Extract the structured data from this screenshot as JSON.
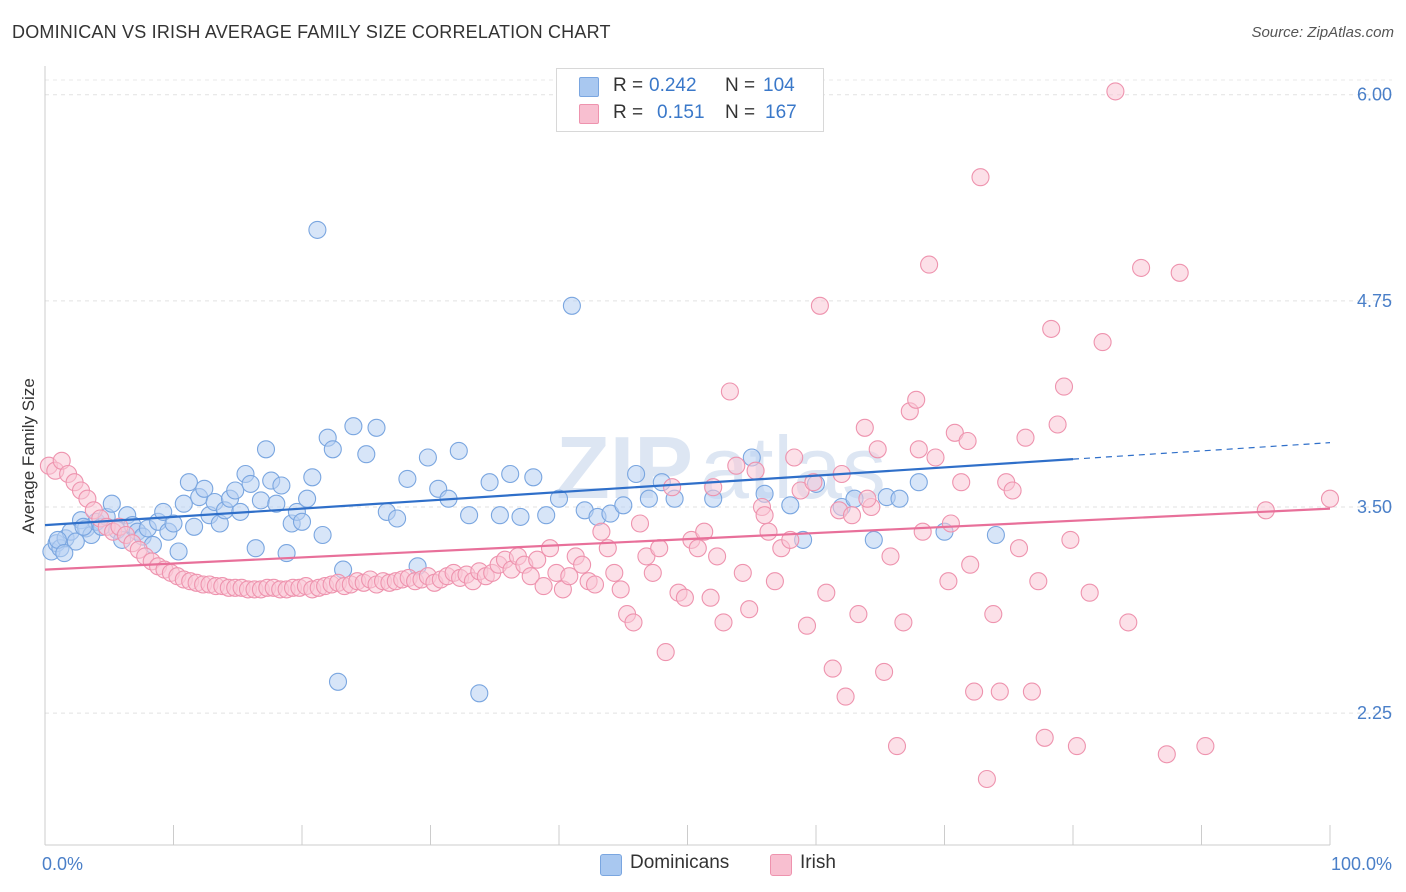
{
  "title": "DOMINICAN VS IRISH AVERAGE FAMILY SIZE CORRELATION CHART",
  "source": "Source: ZipAtlas.com",
  "watermark": {
    "bold": "ZIP",
    "thin": "atlas"
  },
  "legend": {
    "rows": [
      {
        "r_label": "R =",
        "r_value": "0.242",
        "n_label": "N =",
        "n_value": "104",
        "color": "#a9c8f0",
        "border": "#7aa6e0"
      },
      {
        "r_label": "R =",
        "r_value": "0.151",
        "n_label": "N =",
        "n_value": "167",
        "color": "#f8bfd0",
        "border": "#ee93ae"
      }
    ]
  },
  "bottom_legend": [
    {
      "label": "Dominicans",
      "color": "#a9c8f0",
      "border": "#7aa6e0"
    },
    {
      "label": "Irish",
      "color": "#f8bfd0",
      "border": "#ee93ae"
    }
  ],
  "chart_data": {
    "type": "scatter",
    "title": "DOMINICAN VS IRISH AVERAGE FAMILY SIZE CORRELATION CHART",
    "xlabel": "",
    "ylabel": "Average Family Size",
    "xlim": [
      0,
      100
    ],
    "ylim": [
      1.45,
      6.15
    ],
    "x_tick_labels": [
      {
        "value": 0,
        "label": "0.0%"
      },
      {
        "value": 100,
        "label": "100.0%"
      }
    ],
    "y_ticks": [
      {
        "value": 2.25,
        "label": "2.25"
      },
      {
        "value": 3.5,
        "label": "3.50"
      },
      {
        "value": 4.75,
        "label": "4.75"
      },
      {
        "value": 6.0,
        "label": "6.00"
      }
    ],
    "grid": "horizontal dashed",
    "legend_position": "top-center",
    "series": [
      {
        "name": "Dominicans",
        "color": "#7aa6e0",
        "fill": "#b6d0f2",
        "line_color": "#2f6fc9",
        "trend": {
          "x0": 0,
          "y0": 3.39,
          "x1": 80,
          "y1": 3.79,
          "dash_x1": 100,
          "dash_y1": 3.89
        },
        "points": [
          [
            0.5,
            3.23
          ],
          [
            0.9,
            3.28
          ],
          [
            1.2,
            3.25
          ],
          [
            1.6,
            3.31
          ],
          [
            2.0,
            3.35
          ],
          [
            2.4,
            3.29
          ],
          [
            2.8,
            3.42
          ],
          [
            3.2,
            3.37
          ],
          [
            3.6,
            3.33
          ],
          [
            4.0,
            3.41
          ],
          [
            4.4,
            3.38
          ],
          [
            4.8,
            3.44
          ],
          [
            5.2,
            3.52
          ],
          [
            5.6,
            3.36
          ],
          [
            6.0,
            3.3
          ],
          [
            6.4,
            3.45
          ],
          [
            6.8,
            3.39
          ],
          [
            7.2,
            3.35
          ],
          [
            7.6,
            3.32
          ],
          [
            8.0,
            3.37
          ],
          [
            8.4,
            3.27
          ],
          [
            8.8,
            3.41
          ],
          [
            9.2,
            3.47
          ],
          [
            9.6,
            3.35
          ],
          [
            10.0,
            3.4
          ],
          [
            10.4,
            3.23
          ],
          [
            10.8,
            3.52
          ],
          [
            11.2,
            3.65
          ],
          [
            11.6,
            3.38
          ],
          [
            12.0,
            3.56
          ],
          [
            12.4,
            3.61
          ],
          [
            12.8,
            3.45
          ],
          [
            13.2,
            3.53
          ],
          [
            13.6,
            3.4
          ],
          [
            14.0,
            3.48
          ],
          [
            14.4,
            3.55
          ],
          [
            14.8,
            3.6
          ],
          [
            15.2,
            3.47
          ],
          [
            15.6,
            3.7
          ],
          [
            16.0,
            3.64
          ],
          [
            16.4,
            3.25
          ],
          [
            16.8,
            3.54
          ],
          [
            17.2,
            3.85
          ],
          [
            17.6,
            3.66
          ],
          [
            18.0,
            3.52
          ],
          [
            18.4,
            3.63
          ],
          [
            18.8,
            3.22
          ],
          [
            19.2,
            3.4
          ],
          [
            19.6,
            3.47
          ],
          [
            20.0,
            3.41
          ],
          [
            20.4,
            3.55
          ],
          [
            20.8,
            3.68
          ],
          [
            21.2,
            5.18
          ],
          [
            21.6,
            3.33
          ],
          [
            22.0,
            3.92
          ],
          [
            22.4,
            3.85
          ],
          [
            22.8,
            2.44
          ],
          [
            23.2,
            3.12
          ],
          [
            24.0,
            3.99
          ],
          [
            25.0,
            3.82
          ],
          [
            25.8,
            3.98
          ],
          [
            26.6,
            3.47
          ],
          [
            27.4,
            3.43
          ],
          [
            28.2,
            3.67
          ],
          [
            29.0,
            3.14
          ],
          [
            29.8,
            3.8
          ],
          [
            30.6,
            3.61
          ],
          [
            31.4,
            3.55
          ],
          [
            32.2,
            3.84
          ],
          [
            33.0,
            3.45
          ],
          [
            33.8,
            2.37
          ],
          [
            34.6,
            3.65
          ],
          [
            35.4,
            3.45
          ],
          [
            36.2,
            3.7
          ],
          [
            37.0,
            3.44
          ],
          [
            38.0,
            3.68
          ],
          [
            39.0,
            3.45
          ],
          [
            40.0,
            3.55
          ],
          [
            41.0,
            4.72
          ],
          [
            42.0,
            3.48
          ],
          [
            43.0,
            3.44
          ],
          [
            44.0,
            3.46
          ],
          [
            45.0,
            3.51
          ],
          [
            46.0,
            3.7
          ],
          [
            47.0,
            3.55
          ],
          [
            48.0,
            3.65
          ],
          [
            49.0,
            3.55
          ],
          [
            52.0,
            3.55
          ],
          [
            55.0,
            3.8
          ],
          [
            56.0,
            3.58
          ],
          [
            58.0,
            3.51
          ],
          [
            59.0,
            3.3
          ],
          [
            60.0,
            3.64
          ],
          [
            62.0,
            3.5
          ],
          [
            63.0,
            3.55
          ],
          [
            64.5,
            3.3
          ],
          [
            65.5,
            3.56
          ],
          [
            66.5,
            3.55
          ],
          [
            68.0,
            3.65
          ],
          [
            70.0,
            3.35
          ],
          [
            74.0,
            3.33
          ],
          [
            1.0,
            3.3
          ],
          [
            1.5,
            3.22
          ],
          [
            3.0,
            3.38
          ]
        ]
      },
      {
        "name": "Irish",
        "color": "#ee93ae",
        "fill": "#f9c6d5",
        "line_color": "#e8709a",
        "trend": {
          "x0": 0,
          "y0": 3.12,
          "x1": 100,
          "y1": 3.49
        },
        "points": [
          [
            0.3,
            3.75
          ],
          [
            0.8,
            3.72
          ],
          [
            1.3,
            3.78
          ],
          [
            1.8,
            3.7
          ],
          [
            2.3,
            3.65
          ],
          [
            2.8,
            3.6
          ],
          [
            3.3,
            3.55
          ],
          [
            3.8,
            3.48
          ],
          [
            4.3,
            3.43
          ],
          [
            4.8,
            3.38
          ],
          [
            5.3,
            3.35
          ],
          [
            5.8,
            3.38
          ],
          [
            6.3,
            3.33
          ],
          [
            6.8,
            3.28
          ],
          [
            7.3,
            3.24
          ],
          [
            7.8,
            3.2
          ],
          [
            8.3,
            3.17
          ],
          [
            8.8,
            3.14
          ],
          [
            9.3,
            3.12
          ],
          [
            9.8,
            3.1
          ],
          [
            10.3,
            3.08
          ],
          [
            10.8,
            3.06
          ],
          [
            11.3,
            3.05
          ],
          [
            11.8,
            3.04
          ],
          [
            12.3,
            3.03
          ],
          [
            12.8,
            3.03
          ],
          [
            13.3,
            3.02
          ],
          [
            13.8,
            3.02
          ],
          [
            14.3,
            3.01
          ],
          [
            14.8,
            3.01
          ],
          [
            15.3,
            3.01
          ],
          [
            15.8,
            3.0
          ],
          [
            16.3,
            3.0
          ],
          [
            16.8,
            3.0
          ],
          [
            17.3,
            3.01
          ],
          [
            17.8,
            3.01
          ],
          [
            18.3,
            3.0
          ],
          [
            18.8,
            3.0
          ],
          [
            19.3,
            3.01
          ],
          [
            19.8,
            3.01
          ],
          [
            20.3,
            3.02
          ],
          [
            20.8,
            3.0
          ],
          [
            21.3,
            3.01
          ],
          [
            21.8,
            3.02
          ],
          [
            22.3,
            3.03
          ],
          [
            22.8,
            3.04
          ],
          [
            23.3,
            3.02
          ],
          [
            23.8,
            3.03
          ],
          [
            24.3,
            3.05
          ],
          [
            24.8,
            3.04
          ],
          [
            25.3,
            3.06
          ],
          [
            25.8,
            3.03
          ],
          [
            26.3,
            3.05
          ],
          [
            26.8,
            3.04
          ],
          [
            27.3,
            3.05
          ],
          [
            27.8,
            3.06
          ],
          [
            28.3,
            3.07
          ],
          [
            28.8,
            3.05
          ],
          [
            29.3,
            3.06
          ],
          [
            29.8,
            3.08
          ],
          [
            30.3,
            3.04
          ],
          [
            30.8,
            3.06
          ],
          [
            31.3,
            3.08
          ],
          [
            31.8,
            3.1
          ],
          [
            32.3,
            3.07
          ],
          [
            32.8,
            3.09
          ],
          [
            33.3,
            3.05
          ],
          [
            33.8,
            3.11
          ],
          [
            34.3,
            3.08
          ],
          [
            34.8,
            3.1
          ],
          [
            35.3,
            3.15
          ],
          [
            35.8,
            3.18
          ],
          [
            36.3,
            3.12
          ],
          [
            36.8,
            3.2
          ],
          [
            37.3,
            3.15
          ],
          [
            37.8,
            3.08
          ],
          [
            38.3,
            3.18
          ],
          [
            38.8,
            3.02
          ],
          [
            39.3,
            3.25
          ],
          [
            39.8,
            3.1
          ],
          [
            40.3,
            3.0
          ],
          [
            40.8,
            3.08
          ],
          [
            41.3,
            3.2
          ],
          [
            41.8,
            3.15
          ],
          [
            42.3,
            3.05
          ],
          [
            42.8,
            3.03
          ],
          [
            43.3,
            3.35
          ],
          [
            43.8,
            3.25
          ],
          [
            44.3,
            3.1
          ],
          [
            44.8,
            3.0
          ],
          [
            45.3,
            2.85
          ],
          [
            45.8,
            2.8
          ],
          [
            46.3,
            3.4
          ],
          [
            46.8,
            3.2
          ],
          [
            47.3,
            3.1
          ],
          [
            47.8,
            3.25
          ],
          [
            48.3,
            2.62
          ],
          [
            48.8,
            3.62
          ],
          [
            49.3,
            2.98
          ],
          [
            49.8,
            2.95
          ],
          [
            50.3,
            3.3
          ],
          [
            50.8,
            3.25
          ],
          [
            51.3,
            3.35
          ],
          [
            51.8,
            2.95
          ],
          [
            52.3,
            3.2
          ],
          [
            52.8,
            2.8
          ],
          [
            53.3,
            4.2
          ],
          [
            53.8,
            3.75
          ],
          [
            54.3,
            3.1
          ],
          [
            54.8,
            2.88
          ],
          [
            55.3,
            3.72
          ],
          [
            55.8,
            3.5
          ],
          [
            56.3,
            3.35
          ],
          [
            56.8,
            3.05
          ],
          [
            57.3,
            3.25
          ],
          [
            58.3,
            3.8
          ],
          [
            58.8,
            3.6
          ],
          [
            59.3,
            2.78
          ],
          [
            59.8,
            3.65
          ],
          [
            60.3,
            4.72
          ],
          [
            60.8,
            2.98
          ],
          [
            61.3,
            2.52
          ],
          [
            61.8,
            3.48
          ],
          [
            62.3,
            2.35
          ],
          [
            62.8,
            3.45
          ],
          [
            63.3,
            2.85
          ],
          [
            63.8,
            3.98
          ],
          [
            64.3,
            3.5
          ],
          [
            64.8,
            3.85
          ],
          [
            65.3,
            2.5
          ],
          [
            65.8,
            3.2
          ],
          [
            66.3,
            2.05
          ],
          [
            66.8,
            2.8
          ],
          [
            67.3,
            4.08
          ],
          [
            67.8,
            4.15
          ],
          [
            68.3,
            3.35
          ],
          [
            68.8,
            4.97
          ],
          [
            69.3,
            3.8
          ],
          [
            70.3,
            3.05
          ],
          [
            70.8,
            3.95
          ],
          [
            71.3,
            3.65
          ],
          [
            71.8,
            3.9
          ],
          [
            72.3,
            2.38
          ],
          [
            72.8,
            5.5
          ],
          [
            73.3,
            1.85
          ],
          [
            73.8,
            2.85
          ],
          [
            74.3,
            2.38
          ],
          [
            74.8,
            3.65
          ],
          [
            75.3,
            3.6
          ],
          [
            75.8,
            3.25
          ],
          [
            76.3,
            3.92
          ],
          [
            76.8,
            2.38
          ],
          [
            77.3,
            3.05
          ],
          [
            77.8,
            2.1
          ],
          [
            78.3,
            4.58
          ],
          [
            78.8,
            4.0
          ],
          [
            79.3,
            4.23
          ],
          [
            79.8,
            3.3
          ],
          [
            80.3,
            2.05
          ],
          [
            81.3,
            2.98
          ],
          [
            82.3,
            4.5
          ],
          [
            83.3,
            6.02
          ],
          [
            84.3,
            2.8
          ],
          [
            85.3,
            4.95
          ],
          [
            87.3,
            2.0
          ],
          [
            88.3,
            4.92
          ],
          [
            90.3,
            2.05
          ],
          [
            95.0,
            3.48
          ],
          [
            100.0,
            3.55
          ],
          [
            68.0,
            3.85
          ],
          [
            70.5,
            3.4
          ],
          [
            62.0,
            3.7
          ],
          [
            58.0,
            3.3
          ],
          [
            64.0,
            3.55
          ],
          [
            52.0,
            3.62
          ],
          [
            56.0,
            3.45
          ],
          [
            72.0,
            3.15
          ]
        ]
      }
    ]
  }
}
